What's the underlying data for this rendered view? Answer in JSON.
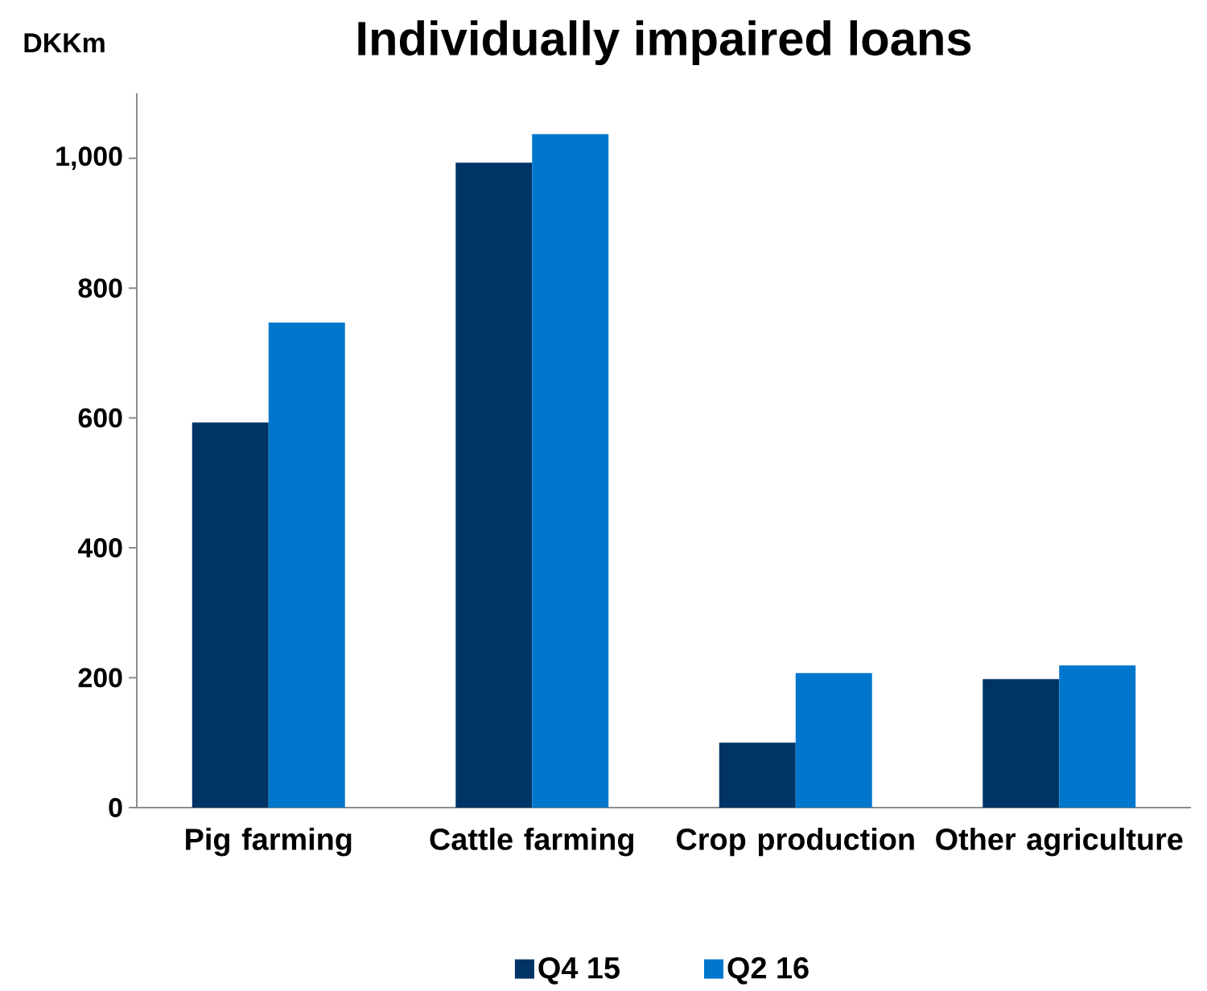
{
  "chart_data": {
    "type": "bar",
    "title": "Individually impaired loans",
    "ylabel": "DKKm",
    "categories": [
      "Pig farming",
      "Cattle farming",
      "Crop production",
      "Other agriculture"
    ],
    "series": [
      {
        "name": "Q4 15",
        "color": "#003366",
        "values": [
          593,
          993,
          100,
          198
        ]
      },
      {
        "name": "Q2 16",
        "color": "#0077cc",
        "values": [
          747,
          1037,
          207,
          219
        ]
      }
    ],
    "ylim": [
      0,
      1100
    ],
    "yticks": [
      0,
      200,
      400,
      600,
      800,
      {
        "value": 1000,
        "label": "1,000"
      }
    ],
    "legend": "bottom"
  }
}
